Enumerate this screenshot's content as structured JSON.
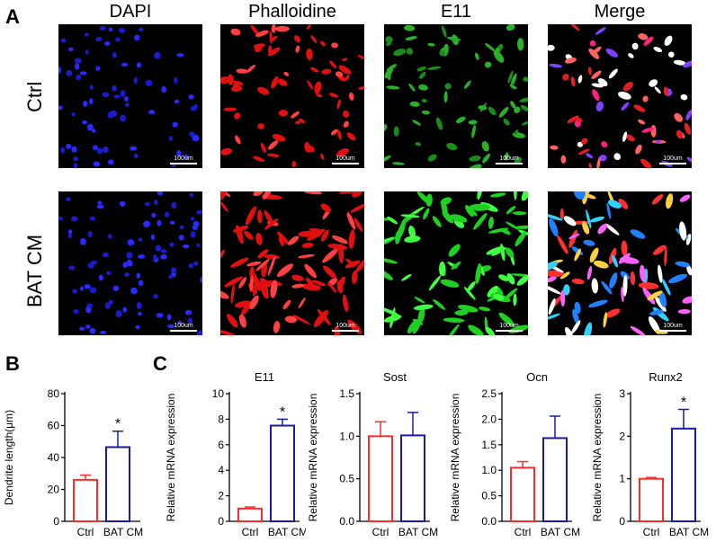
{
  "panel_a": {
    "letter": "A",
    "columns": [
      "DAPI",
      "Phalloidine",
      "E11",
      "Merge"
    ],
    "rows": [
      "Ctrl",
      "BAT CM"
    ],
    "scale_label": "100um"
  },
  "panel_b": {
    "letter": "B"
  },
  "panel_c": {
    "letter": "C"
  },
  "chart_data": [
    {
      "type": "bar",
      "title": "",
      "xlabel": "",
      "ylabel": "Dendrite length(μm)",
      "categories": [
        "Ctrl",
        "BAT CM"
      ],
      "values": [
        26,
        46.5
      ],
      "errors": [
        3,
        10
      ],
      "ylim": [
        0,
        80
      ],
      "yticks": [
        "0",
        "20",
        "40",
        "60",
        "80"
      ],
      "significance": [
        "",
        "*"
      ],
      "colors": [
        "#ff2a2a",
        "#1a1aa8"
      ]
    },
    {
      "type": "bar",
      "title": "E11",
      "xlabel": "",
      "ylabel": "Relative mRNA expression",
      "categories": [
        "Ctrl",
        "BAT CM"
      ],
      "values": [
        1,
        7.5
      ],
      "errors": [
        0.12,
        0.5
      ],
      "ylim": [
        0,
        10
      ],
      "yticks": [
        "0",
        "2",
        "4",
        "6",
        "8",
        "10"
      ],
      "significance": [
        "",
        "*"
      ],
      "colors": [
        "#ff2a2a",
        "#1a1aa8"
      ]
    },
    {
      "type": "bar",
      "title": "Sost",
      "xlabel": "",
      "ylabel": "Relative mRNA expression",
      "categories": [
        "Ctrl",
        "BAT CM"
      ],
      "values": [
        1,
        1.01
      ],
      "errors": [
        0.17,
        0.27
      ],
      "ylim": [
        0,
        1.5
      ],
      "yticks": [
        "0.0",
        "0.5",
        "1.0",
        "1.5"
      ],
      "significance": [
        "",
        ""
      ],
      "colors": [
        "#ff2a2a",
        "#1a1aa8"
      ]
    },
    {
      "type": "bar",
      "title": "Ocn",
      "xlabel": "",
      "ylabel": "Relative mRNA expression",
      "categories": [
        "Ctrl",
        "BAT CM"
      ],
      "values": [
        1.05,
        1.63
      ],
      "errors": [
        0.12,
        0.43
      ],
      "ylim": [
        0,
        2.5
      ],
      "yticks": [
        "0.0",
        "0.5",
        "1.0",
        "1.5",
        "2.0",
        "2.5"
      ],
      "significance": [
        "",
        ""
      ],
      "colors": [
        "#ff2a2a",
        "#1a1aa8"
      ]
    },
    {
      "type": "bar",
      "title": "Runx2",
      "xlabel": "",
      "ylabel": "Relative mRNA expression",
      "categories": [
        "Ctrl",
        "BAT CM"
      ],
      "values": [
        1,
        2.18
      ],
      "errors": [
        0.03,
        0.45
      ],
      "ylim": [
        0,
        3
      ],
      "yticks": [
        "0",
        "1",
        "2",
        "3"
      ],
      "significance": [
        "",
        "*"
      ],
      "colors": [
        "#ff2a2a",
        "#1a1aa8"
      ]
    }
  ]
}
